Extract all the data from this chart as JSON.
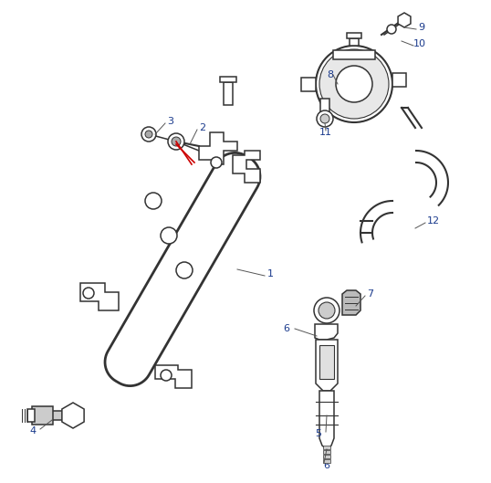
{
  "background_color": "#ffffff",
  "line_color": "#333333",
  "label_color": "#1a3a8c",
  "red_color": "#cc0000",
  "lw_main": 2.0,
  "lw_thin": 1.1,
  "lw_med": 1.5,
  "label_fs": 8,
  "figsize": [
    5.38,
    5.29
  ],
  "dpi": 100,
  "xlim": [
    0,
    538
  ],
  "ylim": [
    0,
    529
  ]
}
